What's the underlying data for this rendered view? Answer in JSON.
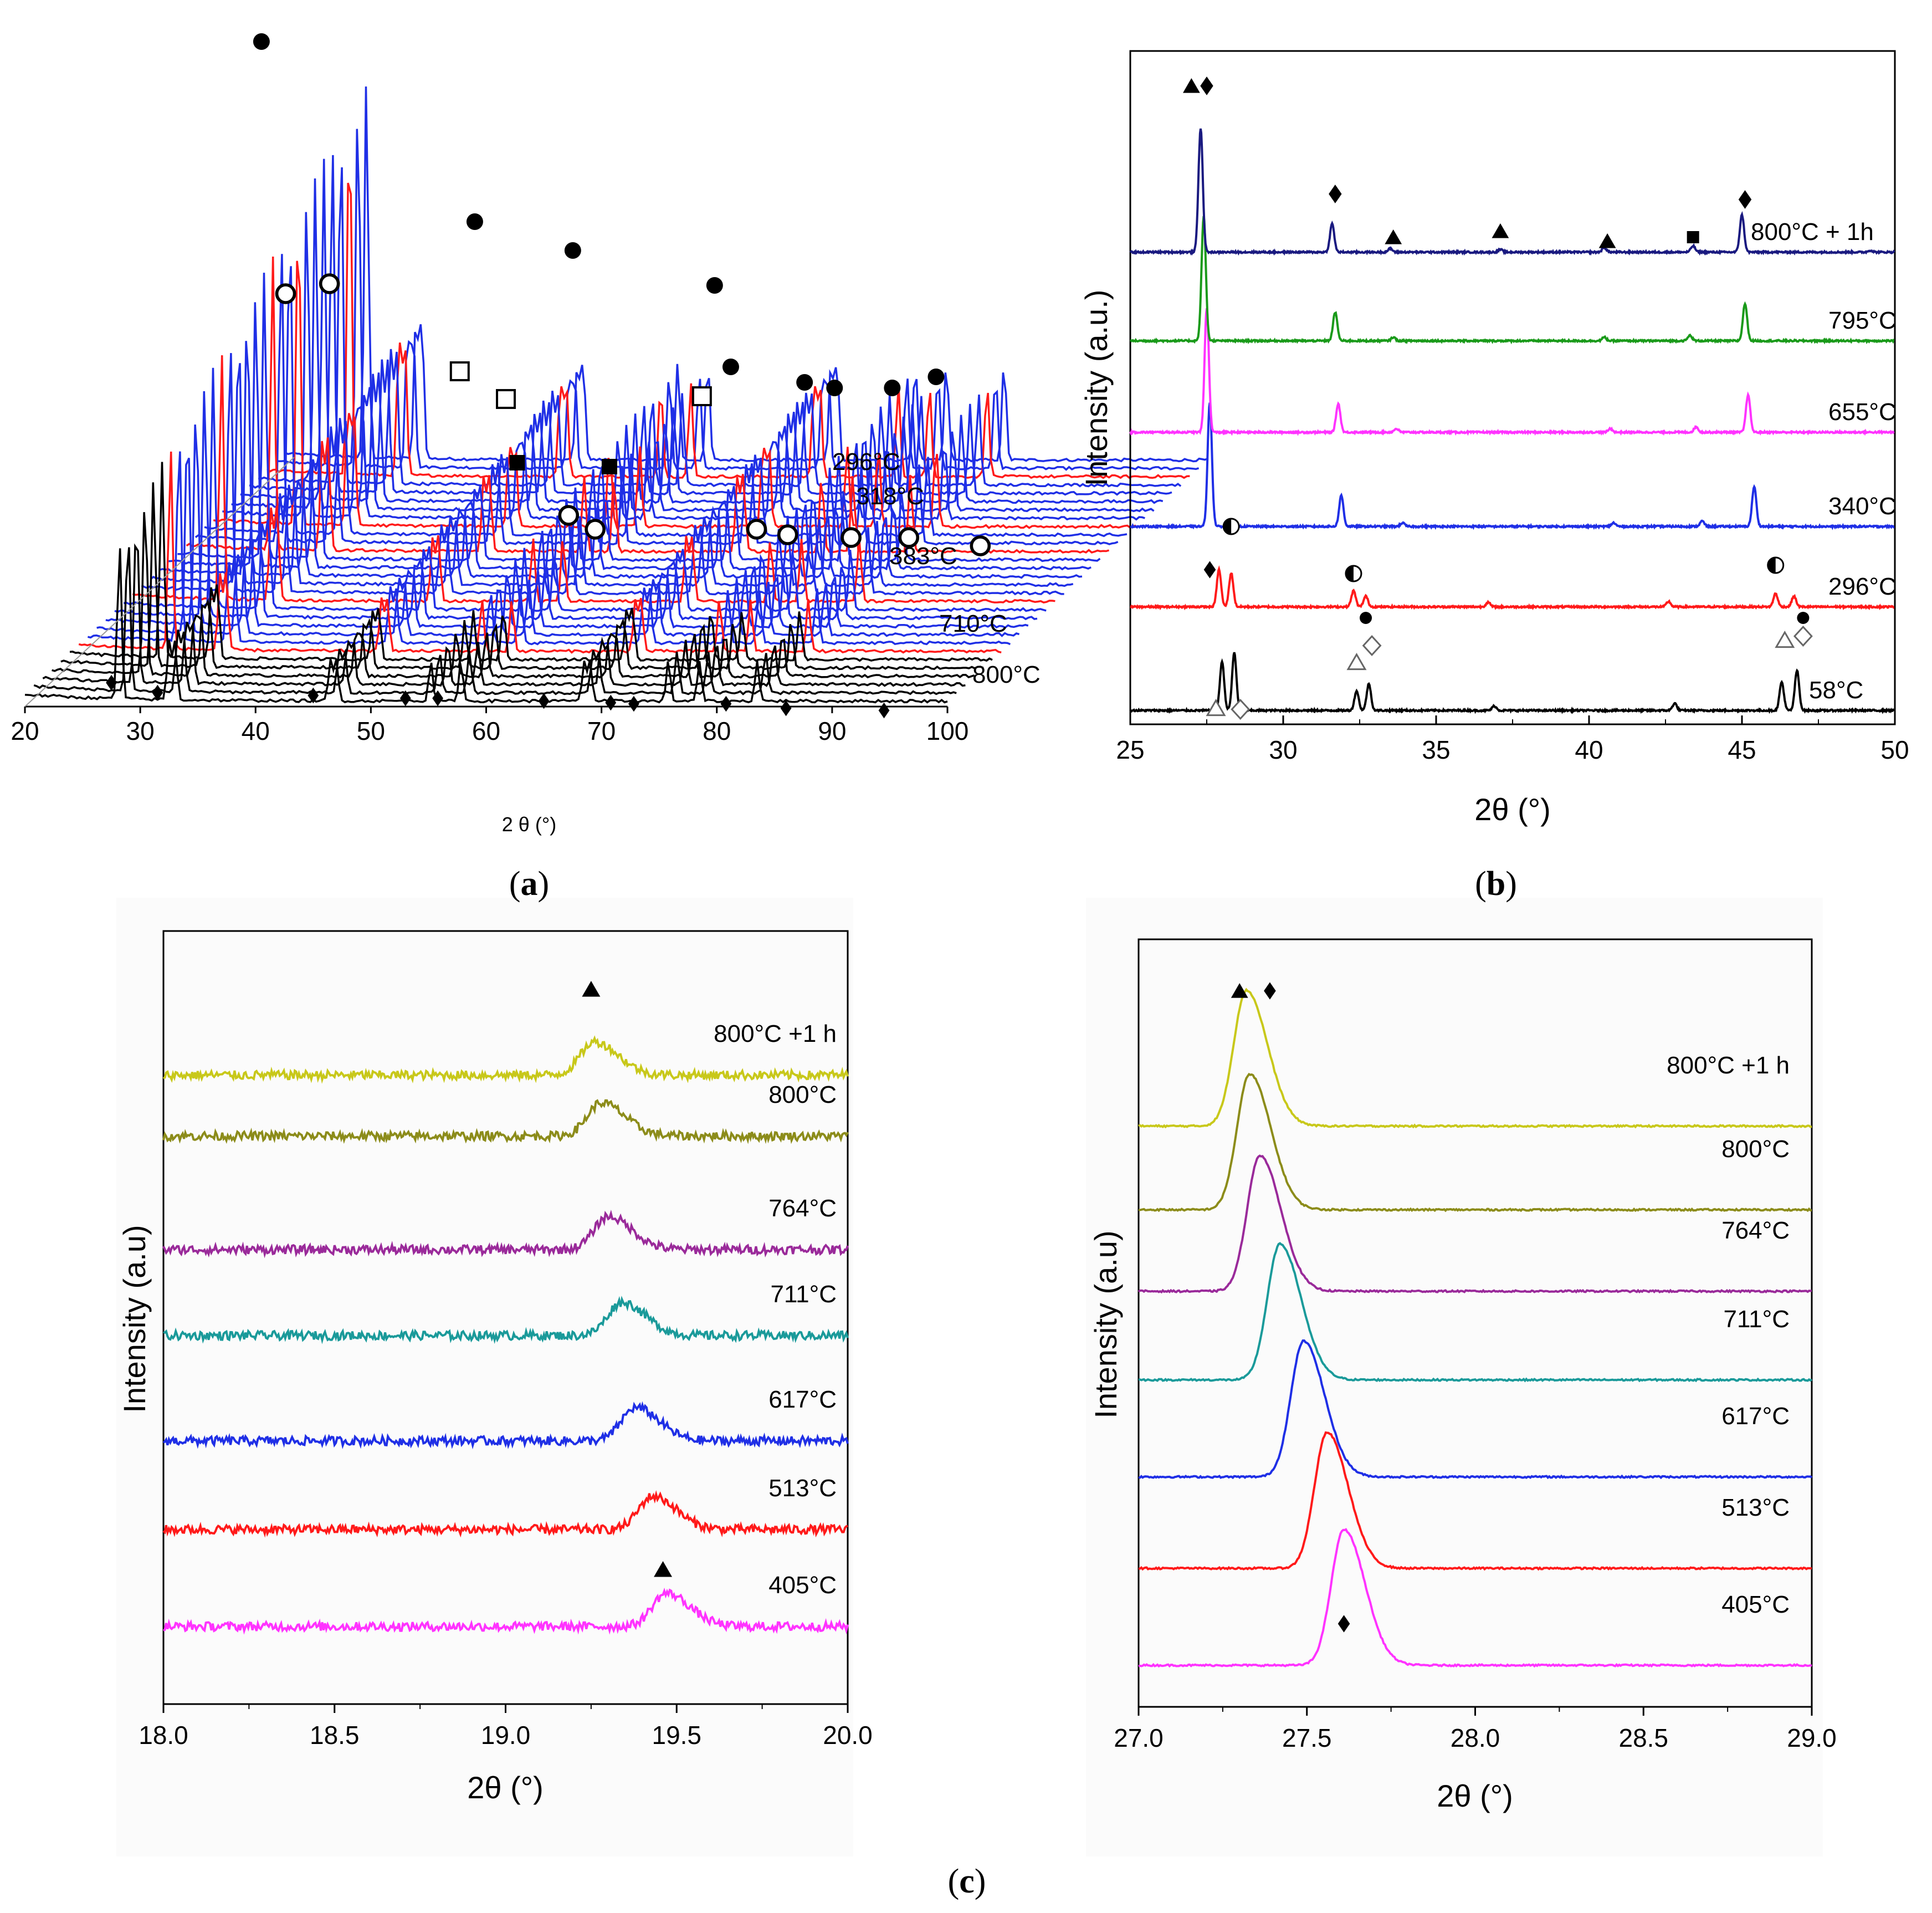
{
  "captions": {
    "a": "a",
    "b": "b",
    "c": "c"
  },
  "colors": {
    "black": "#000000",
    "red": "#ff1a1a",
    "blue": "#1f2fe6",
    "navy": "#1a1a80",
    "green": "#1a9a1a",
    "magenta": "#ff33ff",
    "yellow": "#c8c81a",
    "olive": "#8c8c1a",
    "purple": "#9a2a9a",
    "teal": "#1a9a9a"
  },
  "chart_data": [
    {
      "id": "a",
      "type": "line",
      "title": "",
      "xlabel": "2 θ (°)",
      "ylabel": "",
      "xlim": [
        20,
        100
      ],
      "x_ticks": [
        "20",
        "30",
        "40",
        "50",
        "60",
        "70",
        "80",
        "90",
        "100"
      ],
      "temperature_labels": [
        "296°C",
        "318°C",
        "383°C",
        "710°C",
        "800°C"
      ],
      "series_stack": {
        "black_front_count": 6,
        "red_rows": [
          6,
          12,
          18,
          21,
          27
        ],
        "total_rows": 30
      },
      "peaks": [
        28.2,
        32.5,
        33.0,
        46.5,
        47.0,
        55.2,
        57.8,
        68.5,
        69.0,
        75.8,
        78.5,
        83.5
      ],
      "markers": {
        "filled_circle": [
          28.5,
          47.0,
          55.5,
          67.8,
          69.2,
          75.6,
          78.2,
          83.2,
          87.0
        ],
        "open_circle": [
          33.0,
          36.8,
          58.5,
          60.8,
          74.8,
          77.5,
          83.0,
          88.0,
          94.2
        ],
        "open_square": [
          50.5,
          54.5,
          71.5
        ],
        "filled_square": [
          55.0,
          63.0
        ],
        "filled_diamond": [
          27.5,
          31.5,
          45.0,
          53.0,
          55.8,
          65.0,
          70.8,
          72.8,
          80.8,
          86.0,
          94.5
        ]
      }
    },
    {
      "id": "b",
      "type": "line",
      "title": "",
      "xlabel": "2θ (°)",
      "ylabel": "Intensity (a.u.)",
      "xlim": [
        25,
        50
      ],
      "x_ticks": [
        "25",
        "30",
        "35",
        "40",
        "45",
        "50"
      ],
      "series": [
        {
          "name": "58°C",
          "color": "#000000",
          "peaks": [
            [
              28.0,
              0.55
            ],
            [
              28.4,
              0.65
            ],
            [
              32.4,
              0.22
            ],
            [
              32.8,
              0.3
            ],
            [
              36.9,
              0.05
            ],
            [
              42.8,
              0.08
            ],
            [
              46.3,
              0.32
            ],
            [
              46.8,
              0.45
            ]
          ]
        },
        {
          "name": "296°C",
          "color": "#ff1a1a",
          "peaks": [
            [
              27.9,
              0.42
            ],
            [
              28.3,
              0.38
            ],
            [
              32.3,
              0.18
            ],
            [
              32.7,
              0.12
            ],
            [
              36.7,
              0.05
            ],
            [
              42.6,
              0.06
            ],
            [
              46.1,
              0.15
            ],
            [
              46.7,
              0.12
            ]
          ]
        },
        {
          "name": "340°C",
          "color": "#1f2fe6",
          "peaks": [
            [
              27.6,
              1.4
            ],
            [
              31.9,
              0.35
            ],
            [
              33.9,
              0.04
            ],
            [
              40.8,
              0.04
            ],
            [
              43.7,
              0.06
            ],
            [
              45.4,
              0.45
            ]
          ]
        },
        {
          "name": "655°C",
          "color": "#ff33ff",
          "peaks": [
            [
              27.5,
              1.4
            ],
            [
              31.8,
              0.32
            ],
            [
              33.7,
              0.04
            ],
            [
              40.7,
              0.04
            ],
            [
              43.5,
              0.06
            ],
            [
              45.2,
              0.42
            ]
          ]
        },
        {
          "name": "795°C",
          "color": "#1a9a1a",
          "peaks": [
            [
              27.4,
              1.4
            ],
            [
              31.7,
              0.32
            ],
            [
              33.6,
              0.04
            ],
            [
              40.5,
              0.04
            ],
            [
              43.3,
              0.06
            ],
            [
              45.1,
              0.42
            ]
          ]
        },
        {
          "name": "800°C + 1h",
          "color": "#1a1a80",
          "peaks": [
            [
              27.3,
              1.4
            ],
            [
              31.6,
              0.32
            ],
            [
              33.5,
              0.04
            ],
            [
              37.1,
              0.03
            ],
            [
              40.5,
              0.05
            ],
            [
              43.4,
              0.07
            ],
            [
              45.0,
              0.42
            ],
            [
              49.2,
              0.02
            ]
          ]
        }
      ],
      "markers": {
        "triangle": [
          27.0,
          33.6,
          37.1,
          40.6
        ],
        "diamond": [
          27.5,
          31.7,
          45.1
        ],
        "square": [
          43.4
        ],
        "open_circle": [
          28.3,
          32.3,
          46.1
        ],
        "filled_diamond_296": [
          27.6
        ],
        "filled_circle": [
          32.7,
          47.0
        ],
        "open_triangle": [
          27.8,
          32.4,
          46.4
        ],
        "open_diamond": [
          28.6,
          32.9,
          47.0
        ]
      }
    },
    {
      "id": "c-left",
      "type": "line",
      "title": "",
      "xlabel": "2θ (°)",
      "ylabel": "Intensity (a.u)",
      "xlim": [
        18.0,
        20.0
      ],
      "x_ticks": [
        "18.0",
        "18.5",
        "19.0",
        "19.5",
        "20.0"
      ],
      "series": [
        {
          "name": "405°C",
          "color": "#ff33ff",
          "peak": 19.47
        },
        {
          "name": "513°C",
          "color": "#ff1a1a",
          "peak": 19.43
        },
        {
          "name": "617°C",
          "color": "#1f2fe6",
          "peak": 19.38
        },
        {
          "name": "711°C",
          "color": "#1a9a9a",
          "peak": 19.34
        },
        {
          "name": "764°C",
          "color": "#9a2a9a",
          "peak": 19.3
        },
        {
          "name": "800°C",
          "color": "#8c8c1a",
          "peak": 19.28
        },
        {
          "name": "800°C +1 h",
          "color": "#c8c81a",
          "peak": 19.26
        }
      ],
      "markers": {
        "triangle": [
          19.25,
          19.46
        ]
      }
    },
    {
      "id": "c-right",
      "type": "line",
      "title": "",
      "xlabel": "2θ (°)",
      "ylabel": "Intensity (a.u)",
      "xlim": [
        27.0,
        29.0
      ],
      "x_ticks": [
        "27.0",
        "27.5",
        "28.0",
        "28.5",
        "29.0"
      ],
      "series": [
        {
          "name": "405°C",
          "color": "#ff33ff",
          "peak": 27.61
        },
        {
          "name": "513°C",
          "color": "#ff1a1a",
          "peak": 27.56
        },
        {
          "name": "617°C",
          "color": "#1f2fe6",
          "peak": 27.49
        },
        {
          "name": "711°C",
          "color": "#1a9a9a",
          "peak": 27.42
        },
        {
          "name": "764°C",
          "color": "#9a2a9a",
          "peak": 27.36
        },
        {
          "name": "800°C",
          "color": "#8c8c1a",
          "peak": 27.33
        },
        {
          "name": "800°C +1 h",
          "color": "#c8c81a",
          "peak": 27.32
        }
      ],
      "markers": {
        "triangle": [
          27.3
        ],
        "diamond": [
          27.39,
          27.61
        ]
      }
    }
  ]
}
